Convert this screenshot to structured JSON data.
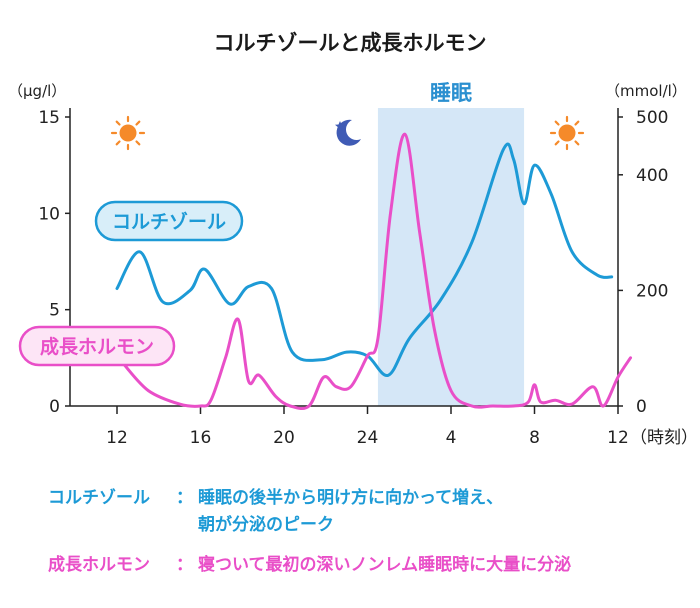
{
  "chart_data": {
    "type": "line",
    "title": "コルチゾールと成長ホルモン",
    "left_axis": {
      "unit": "（μg/l）",
      "ticks": [
        0,
        5,
        10,
        15
      ],
      "range": [
        0,
        15
      ]
    },
    "right_axis": {
      "unit": "（mmol/l）",
      "ticks": [
        0,
        200,
        400,
        500
      ],
      "range": [
        0,
        500
      ]
    },
    "x_axis": {
      "unit": "（時刻）",
      "ticks": [
        "12",
        "16",
        "20",
        "24",
        "4",
        "8",
        "12"
      ],
      "range_hours": [
        12,
        36
      ]
    },
    "sleep_period": {
      "label": "睡眠",
      "start_hour": 24.5,
      "end_hour": 31.5,
      "color": "#d5e7f7"
    },
    "series": [
      {
        "name": "コルチゾール",
        "axis": "left",
        "color": "#1d9ad6",
        "x": [
          12,
          13.1,
          14.2,
          15.5,
          16.2,
          17.4,
          18.3,
          19.4,
          20.4,
          21.8,
          23.0,
          24.0,
          25.0,
          26.0,
          27.5,
          29.0,
          30.5,
          31.0,
          31.5,
          32.0,
          32.8,
          33.8,
          35.0,
          35.7
        ],
        "y": [
          6.1,
          8.0,
          5.4,
          6.0,
          7.1,
          5.3,
          6.2,
          6.1,
          2.8,
          2.4,
          2.8,
          2.6,
          1.6,
          3.5,
          5.5,
          8.5,
          13.3,
          12.8,
          10.5,
          12.5,
          11.0,
          8.0,
          6.8,
          6.7
        ]
      },
      {
        "name": "成長ホルモン",
        "axis": "left",
        "color": "#e94fc8",
        "x": [
          12.3,
          13.5,
          15.0,
          16.0,
          16.5,
          17.2,
          17.8,
          18.3,
          18.8,
          19.6,
          20.3,
          21.2,
          21.9,
          22.5,
          23.2,
          24.0,
          24.5,
          25.1,
          25.8,
          26.5,
          27.2,
          28.0,
          29.0,
          30.0,
          31.0,
          31.7,
          32.0,
          32.3,
          33.0,
          33.8,
          34.8,
          35.3,
          36.0,
          36.6
        ],
        "y": [
          2.2,
          0.8,
          0.1,
          0.0,
          0.3,
          2.5,
          4.5,
          1.3,
          1.6,
          0.5,
          0.0,
          0.0,
          1.5,
          1.0,
          1.0,
          2.6,
          3.5,
          10.0,
          14.1,
          9.0,
          4.0,
          0.8,
          0.0,
          0.0,
          0.0,
          0.2,
          1.1,
          0.2,
          0.3,
          0.1,
          1.0,
          0.0,
          1.5,
          2.5
        ]
      }
    ],
    "notes": [
      {
        "label": "コルチゾール",
        "colon": "：",
        "text": "睡眠の後半から明け方に向かって増え、",
        "text2": "朝が分泌のピーク",
        "color": "#1d9ad6"
      },
      {
        "label": "成長ホルモン",
        "colon": "：",
        "text": "寝ついて最初の深いノンレム睡眠時に大量に分泌",
        "color": "#e94fc8"
      }
    ],
    "icons": [
      "sun-icon",
      "moon-icon",
      "sun-icon"
    ]
  }
}
